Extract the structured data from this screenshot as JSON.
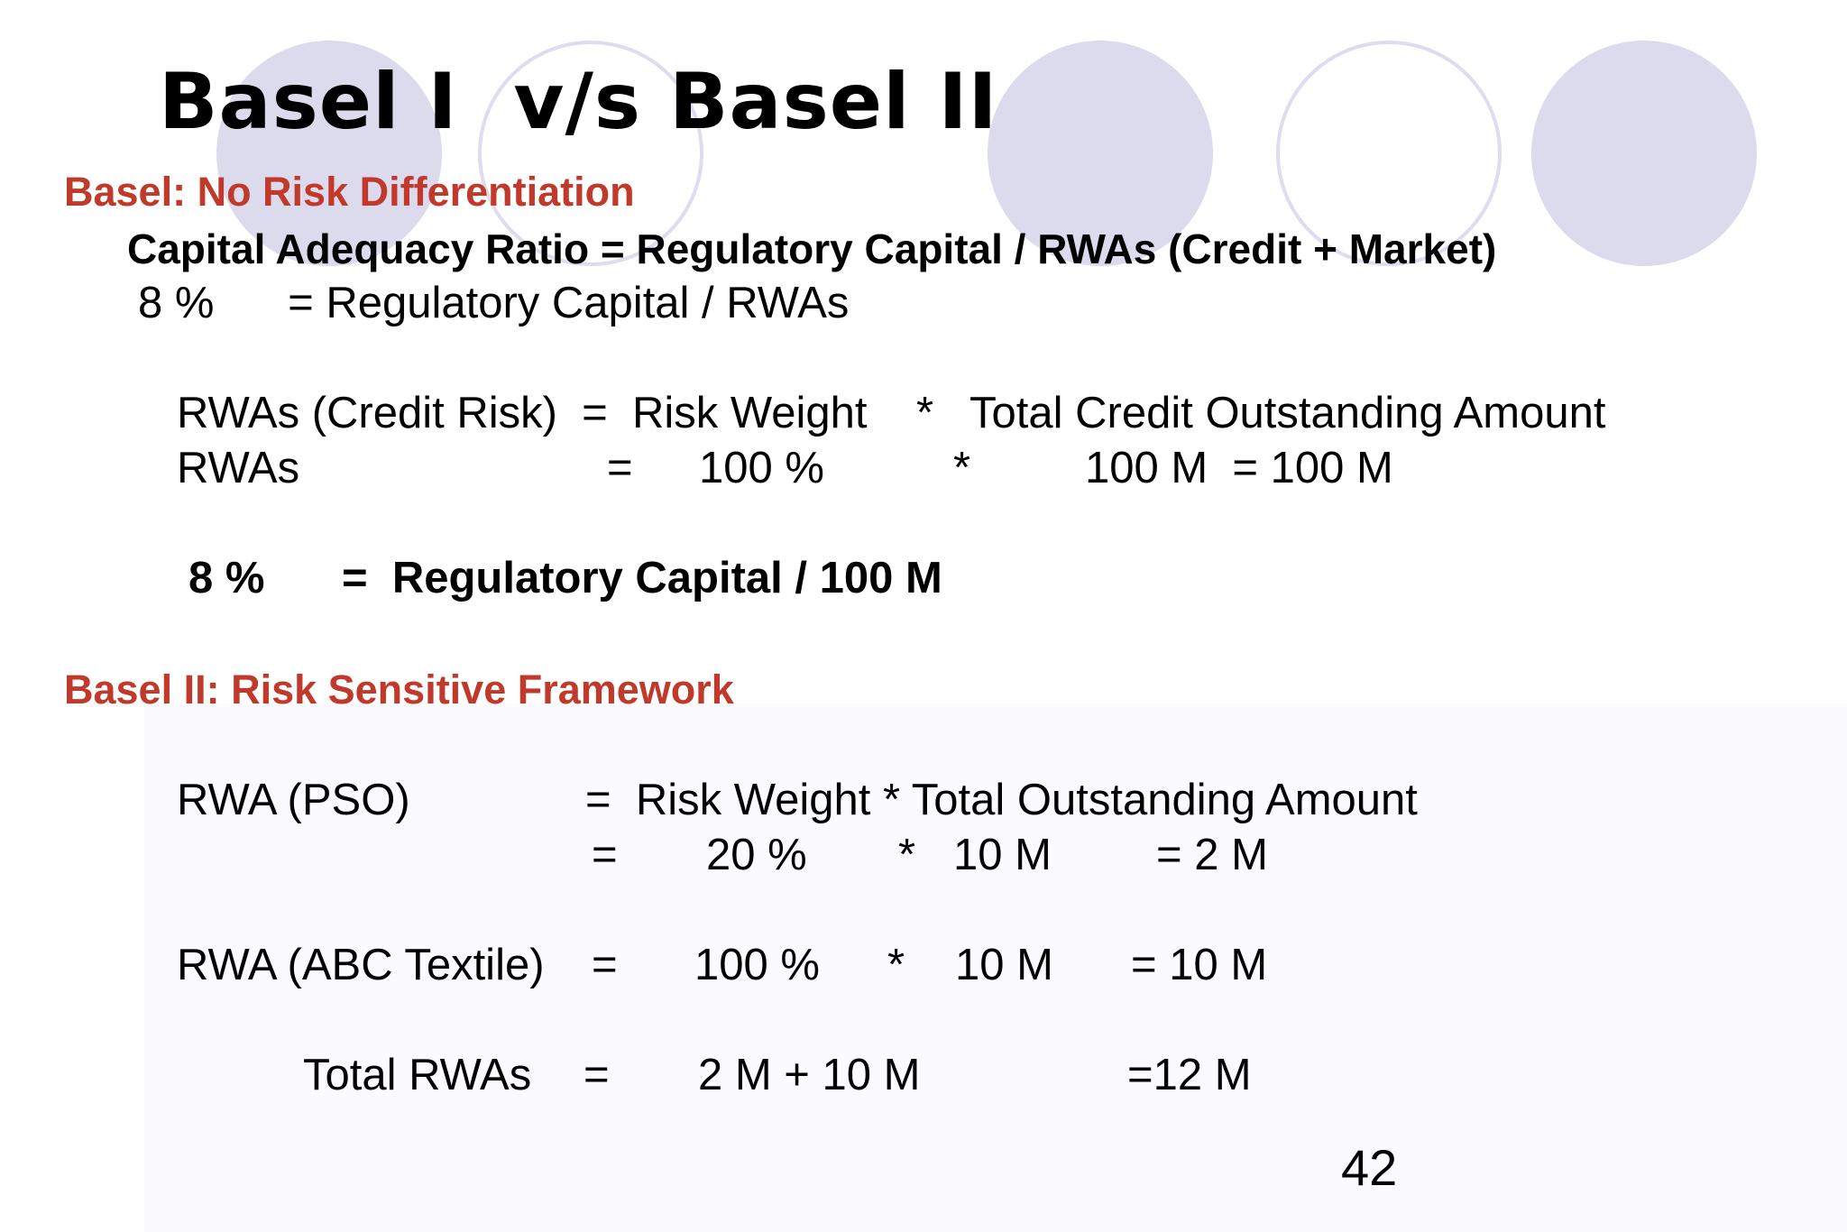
{
  "slide": {
    "title": "Basel I  v/s Basel II",
    "page_number": "42",
    "accent_color": "#c0392b",
    "decoration_color": "#dcdbee"
  },
  "basel1": {
    "heading": "Basel: No Risk Differentiation",
    "car_formula": "Capital Adequacy Ratio = Regulatory Capital / RWAs (Credit + Market)",
    "car_value": "8 %      = Regulatory Capital / RWAs",
    "rwa_formula": "RWAs (Credit Risk)  =  Risk Weight    *   Total Credit Outstanding Amount",
    "rwa_calc": {
      "label": "RWAs",
      "eq": "=",
      "weight": "100 %",
      "op": "*",
      "amount": "100 M  = 100 M"
    },
    "result": {
      "pct": "8 %",
      "rest": "=  Regulatory Capital / 100 M"
    }
  },
  "basel2": {
    "heading": "Basel II: Risk Sensitive Framework",
    "pso": {
      "label": "RWA (PSO)",
      "formula": "=  Risk Weight * Total Outstanding Amount",
      "eq": "=",
      "weight": "20 %",
      "op": "*",
      "amount": "10 M",
      "result": "= 2 M"
    },
    "abc": {
      "label": "RWA (ABC Textile)",
      "eq": "=",
      "weight": "100 %",
      "op": "*",
      "amount": "10 M",
      "result": "= 10 M"
    },
    "total": {
      "label": "Total RWAs",
      "eq": "=",
      "sum": "2 M + 10 M",
      "result": "=12 M"
    }
  }
}
